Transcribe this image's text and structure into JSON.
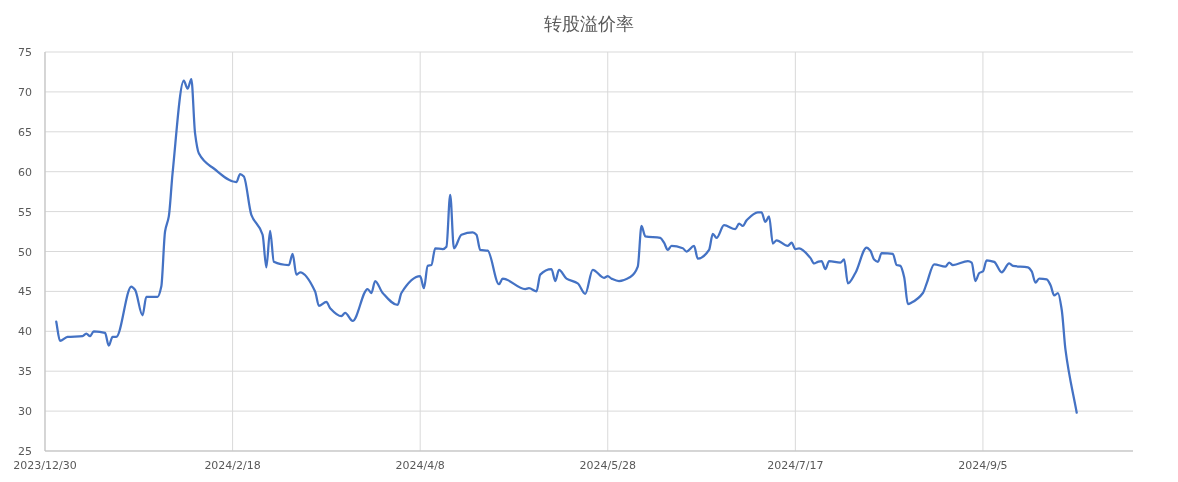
{
  "chart_data": {
    "type": "line",
    "title": "转股溢价率",
    "xlim": [
      "2023-12-30",
      "2024-10-15"
    ],
    "xticks": [
      {
        "value": "2023-12-30",
        "label": "2023/12/30"
      },
      {
        "value": "2024-02-18",
        "label": "2024/2/18"
      },
      {
        "value": "2024-04-08",
        "label": "2024/4/8"
      },
      {
        "value": "2024-05-28",
        "label": "2024/5/28"
      },
      {
        "value": "2024-07-17",
        "label": "2024/7/17"
      },
      {
        "value": "2024-09-05",
        "label": "2024/9/5"
      }
    ],
    "ylim": [
      25,
      75
    ],
    "yticks": [
      25,
      30,
      35,
      40,
      45,
      50,
      55,
      60,
      65,
      70,
      75
    ],
    "grid": true,
    "series": [
      {
        "color": "#4472c4",
        "x": [
          "2024-01-02",
          "2024-01-03",
          "2024-01-05",
          "2024-01-09",
          "2024-01-10",
          "2024-01-11",
          "2024-01-12",
          "2024-01-15",
          "2024-01-16",
          "2024-01-17",
          "2024-01-18",
          "2024-01-22",
          "2024-01-23",
          "2024-01-25",
          "2024-01-26",
          "2024-01-29",
          "2024-01-30",
          "2024-01-31",
          "2024-02-01",
          "2024-02-02",
          "2024-02-05",
          "2024-02-06",
          "2024-02-07",
          "2024-02-08",
          "2024-02-09",
          "2024-02-13",
          "2024-02-19",
          "2024-02-20",
          "2024-02-21",
          "2024-02-23",
          "2024-02-26",
          "2024-02-27",
          "2024-02-28",
          "2024-02-29",
          "2024-03-04",
          "2024-03-05",
          "2024-03-06",
          "2024-03-07",
          "2024-03-11",
          "2024-03-12",
          "2024-03-14",
          "2024-03-15",
          "2024-03-18",
          "2024-03-19",
          "2024-03-21",
          "2024-03-25",
          "2024-03-26",
          "2024-03-27",
          "2024-03-29",
          "2024-04-02",
          "2024-04-03",
          "2024-04-08",
          "2024-04-09",
          "2024-04-10",
          "2024-04-11",
          "2024-04-12",
          "2024-04-14",
          "2024-04-15",
          "2024-04-16",
          "2024-04-17",
          "2024-04-19",
          "2024-04-22",
          "2024-04-23",
          "2024-04-24",
          "2024-04-26",
          "2024-04-29",
          "2024-04-30",
          "2024-05-06",
          "2024-05-07",
          "2024-05-09",
          "2024-05-10",
          "2024-05-13",
          "2024-05-14",
          "2024-05-15",
          "2024-05-17",
          "2024-05-20",
          "2024-05-22",
          "2024-05-24",
          "2024-05-27",
          "2024-05-28",
          "2024-05-29",
          "2024-05-31",
          "2024-06-03",
          "2024-06-05",
          "2024-06-06",
          "2024-06-07",
          "2024-06-11",
          "2024-06-12",
          "2024-06-13",
          "2024-06-14",
          "2024-06-17",
          "2024-06-18",
          "2024-06-20",
          "2024-06-21",
          "2024-06-24",
          "2024-06-25",
          "2024-06-26",
          "2024-06-28",
          "2024-07-01",
          "2024-07-02",
          "2024-07-03",
          "2024-07-04",
          "2024-07-07",
          "2024-07-08",
          "2024-07-09",
          "2024-07-10",
          "2024-07-11",
          "2024-07-12",
          "2024-07-15",
          "2024-07-16",
          "2024-07-17",
          "2024-07-18",
          "2024-07-21",
          "2024-07-22",
          "2024-07-23",
          "2024-07-24",
          "2024-07-25",
          "2024-07-26",
          "2024-07-29",
          "2024-07-30",
          "2024-07-31",
          "2024-08-02",
          "2024-08-05",
          "2024-08-06",
          "2024-08-07",
          "2024-08-08",
          "2024-08-09",
          "2024-08-12",
          "2024-08-13",
          "2024-08-14",
          "2024-08-15",
          "2024-08-16",
          "2024-08-17",
          "2024-08-20",
          "2024-08-21",
          "2024-08-23",
          "2024-08-26",
          "2024-08-27",
          "2024-08-28",
          "2024-09-01",
          "2024-09-02",
          "2024-09-03",
          "2024-09-04",
          "2024-09-05",
          "2024-09-06",
          "2024-09-08",
          "2024-09-10",
          "2024-09-12",
          "2024-09-13",
          "2024-09-17",
          "2024-09-18",
          "2024-09-19",
          "2024-09-20",
          "2024-09-22",
          "2024-09-23",
          "2024-09-24",
          "2024-09-25",
          "2024-09-26",
          "2024-09-27",
          "2024-09-30"
        ],
        "values": [
          41.2,
          38.8,
          39.3,
          39.4,
          39.7,
          39.4,
          40.0,
          39.8,
          38.2,
          39.3,
          39.3,
          45.6,
          45.2,
          42.0,
          44.3,
          44.3,
          45.6,
          52.5,
          54.4,
          59.8,
          71.4,
          70.4,
          71.6,
          64.8,
          62.3,
          60.4,
          58.7,
          59.7,
          59.4,
          54.6,
          52.1,
          48.0,
          52.6,
          48.7,
          48.3,
          49.7,
          47.1,
          47.4,
          45.0,
          43.2,
          43.7,
          42.9,
          41.9,
          42.3,
          41.3,
          45.3,
          44.8,
          46.3,
          44.8,
          43.3,
          44.8,
          46.9,
          45.4,
          48.2,
          48.3,
          50.4,
          50.3,
          50.6,
          57.1,
          50.4,
          52.1,
          52.4,
          52.1,
          50.2,
          50.1,
          45.9,
          46.6,
          45.3,
          45.4,
          45.0,
          47.1,
          47.8,
          46.3,
          47.7,
          46.6,
          46.0,
          44.7,
          47.7,
          46.7,
          46.9,
          46.6,
          46.3,
          46.8,
          48.1,
          53.2,
          51.9,
          51.7,
          51.1,
          50.2,
          50.7,
          50.4,
          50.0,
          50.7,
          49.1,
          50.2,
          52.2,
          51.7,
          53.3,
          52.8,
          53.5,
          53.2,
          53.9,
          54.9,
          54.9,
          53.7,
          54.4,
          51.0,
          51.4,
          50.7,
          51.1,
          50.3,
          50.4,
          49.2,
          48.5,
          48.7,
          48.8,
          47.8,
          48.8,
          48.6,
          49.0,
          46.0,
          47.3,
          50.5,
          50.1,
          49.0,
          48.7,
          49.8,
          49.7,
          48.3,
          48.2,
          46.8,
          43.4,
          43.6,
          44.8,
          46.0,
          48.4,
          48.1,
          48.6,
          48.3,
          48.8,
          48.6,
          46.3,
          47.3,
          47.5,
          48.9,
          48.7,
          47.4,
          48.5,
          48.2,
          48.0,
          47.5,
          46.1,
          46.6,
          46.5,
          45.8,
          44.5,
          44.8,
          42.7,
          37.7,
          29.8
        ]
      }
    ]
  }
}
